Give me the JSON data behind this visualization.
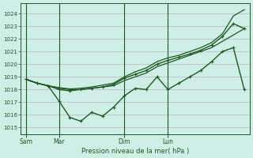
{
  "bg_color": "#d0eee8",
  "grid_color": "#c8b8c8",
  "line_color": "#1a5c1a",
  "ylabel_ticks": [
    1015,
    1016,
    1017,
    1018,
    1019,
    1020,
    1021,
    1022,
    1023,
    1024
  ],
  "ylim": [
    1014.5,
    1024.8
  ],
  "xlabel": "Pression niveau de la mer( hPa )",
  "day_labels": [
    "Sam",
    "Mar",
    "Dim",
    "Lun"
  ],
  "day_positions": [
    0,
    3,
    9,
    13
  ],
  "vline_positions": [
    0,
    3,
    9,
    13
  ],
  "series": [
    {
      "x": [
        0,
        1,
        2,
        3,
        4,
        5,
        6,
        7,
        8,
        9,
        10,
        11,
        12,
        13,
        14,
        15,
        16,
        17,
        18,
        19,
        20
      ],
      "y": [
        1018.8,
        1018.5,
        1018.3,
        1017.1,
        1015.8,
        1015.5,
        1016.2,
        1015.9,
        1016.6,
        1017.5,
        1018.1,
        1018.0,
        1019.0,
        1018.0,
        1018.5,
        1019.0,
        1019.5,
        1020.2,
        1021.0,
        1021.3,
        1018.0
      ],
      "has_markers": true,
      "lw": 1.0
    },
    {
      "x": [
        0,
        1,
        2,
        3,
        4,
        5,
        6,
        7,
        8,
        9,
        10,
        11,
        12,
        13,
        14,
        15,
        16,
        17,
        18,
        19,
        20
      ],
      "y": [
        1018.8,
        1018.5,
        1018.3,
        1018.1,
        1018.0,
        1018.0,
        1018.1,
        1018.2,
        1018.3,
        1018.7,
        1019.0,
        1019.3,
        1019.8,
        1020.1,
        1020.4,
        1020.7,
        1021.0,
        1021.3,
        1021.8,
        1022.3,
        1022.8
      ],
      "has_markers": false,
      "lw": 0.9
    },
    {
      "x": [
        0,
        1,
        2,
        3,
        4,
        5,
        6,
        7,
        8,
        9,
        10,
        11,
        12,
        13,
        14,
        15,
        16,
        17,
        18,
        19,
        20
      ],
      "y": [
        1018.8,
        1018.5,
        1018.3,
        1018.15,
        1018.05,
        1018.1,
        1018.2,
        1018.35,
        1018.5,
        1019.0,
        1019.4,
        1019.7,
        1020.2,
        1020.5,
        1020.7,
        1021.0,
        1021.3,
        1021.7,
        1022.4,
        1023.8,
        1024.3
      ],
      "has_markers": false,
      "lw": 0.9
    },
    {
      "x": [
        0,
        1,
        2,
        3,
        4,
        5,
        6,
        7,
        8,
        9,
        10,
        11,
        12,
        13,
        14,
        15,
        16,
        17,
        18,
        19,
        20
      ],
      "y": [
        1018.8,
        1018.5,
        1018.3,
        1018.0,
        1017.9,
        1018.0,
        1018.1,
        1018.2,
        1018.4,
        1018.9,
        1019.2,
        1019.5,
        1020.0,
        1020.3,
        1020.55,
        1020.8,
        1021.1,
        1021.5,
        1022.2,
        1023.2,
        1022.8
      ],
      "has_markers": true,
      "lw": 1.0
    }
  ]
}
